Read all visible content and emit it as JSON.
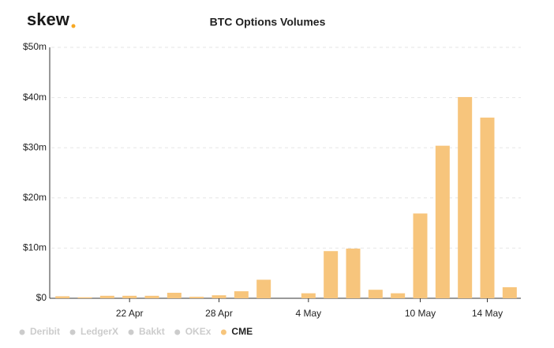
{
  "brand": "skew",
  "chart_data": {
    "type": "bar",
    "title": "BTC Options Volumes",
    "categories": [
      null,
      null,
      null,
      "22 Apr",
      null,
      null,
      null,
      "28 Apr",
      null,
      null,
      null,
      "4 May",
      null,
      null,
      null,
      null,
      "10 May",
      null,
      null,
      "14 May",
      null
    ],
    "series": [
      {
        "name": "CME",
        "color": "#f7c57c",
        "values": [
          0.4,
          0.2,
          0.5,
          0.5,
          0.5,
          1.1,
          0.3,
          0.6,
          1.4,
          3.7,
          0,
          1.0,
          9.4,
          9.9,
          1.7,
          1.0,
          16.9,
          30.4,
          40.1,
          36.0,
          2.2
        ]
      }
    ],
    "hidden_series": [
      "Deribit",
      "LedgerX",
      "Bakkt",
      "OKEx"
    ],
    "hidden_color": "#cccccc",
    "ylim": [
      0,
      50
    ],
    "yticks": [
      {
        "value": 0,
        "label": "$0"
      },
      {
        "value": 10,
        "label": "$10m"
      },
      {
        "value": 20,
        "label": "$20m"
      },
      {
        "value": 30,
        "label": "$30m"
      },
      {
        "value": 40,
        "label": "$40m"
      },
      {
        "value": 50,
        "label": "$50m"
      }
    ],
    "grid": true,
    "legend": "bottom-left"
  }
}
